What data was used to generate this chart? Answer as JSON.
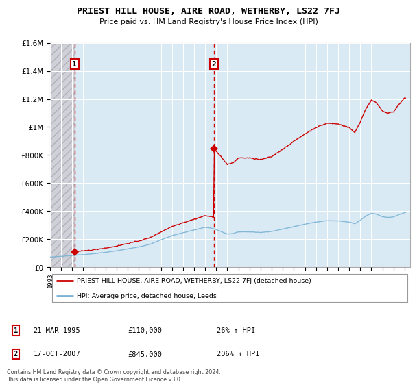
{
  "title": "PRIEST HILL HOUSE, AIRE ROAD, WETHERBY, LS22 7FJ",
  "subtitle": "Price paid vs. HM Land Registry's House Price Index (HPI)",
  "legend_line1": "PRIEST HILL HOUSE, AIRE ROAD, WETHERBY, LS22 7FJ (detached house)",
  "legend_line2": "HPI: Average price, detached house, Leeds",
  "footer": "Contains HM Land Registry data © Crown copyright and database right 2024.\nThis data is licensed under the Open Government Licence v3.0.",
  "annotation1_date": "21-MAR-1995",
  "annotation1_price": "£110,000",
  "annotation1_hpi": "26% ↑ HPI",
  "annotation2_date": "17-OCT-2007",
  "annotation2_price": "£845,000",
  "annotation2_hpi": "206% ↑ HPI",
  "red_color": "#cc0000",
  "blue_color": "#7ab3d4",
  "plot_bg": "#daeaf5",
  "hatch_bg": "#d0d0d8",
  "ylim": [
    0,
    1600000
  ],
  "yticks": [
    0,
    200000,
    400000,
    600000,
    800000,
    1000000,
    1200000,
    1400000,
    1600000
  ],
  "xlim_start": 1993.0,
  "xlim_end": 2025.5,
  "sale1_x": 1995.21,
  "sale1_y": 110000,
  "sale2_x": 2007.79,
  "sale2_y": 845000,
  "hpi_base_x": 1995.21,
  "hpi_base_y": 87000
}
